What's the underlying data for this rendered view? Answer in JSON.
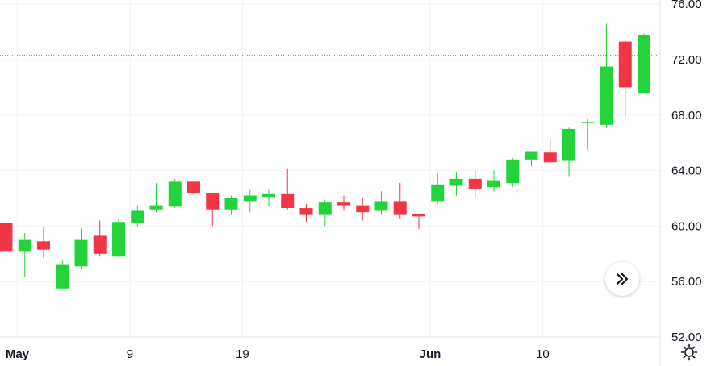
{
  "chart_data": {
    "type": "candlestick",
    "y_ticks": [
      "52.00",
      "56.00",
      "60.00",
      "64.00",
      "68.00",
      "72.00",
      "76.00"
    ],
    "ylim": [
      52,
      76.3
    ],
    "x_ticks": [
      {
        "label": "May",
        "index": 0.6,
        "bold": true
      },
      {
        "label": "9",
        "index": 6.6,
        "bold": false
      },
      {
        "label": "19",
        "index": 12.6,
        "bold": false
      },
      {
        "label": "Jun",
        "index": 22.6,
        "bold": true
      },
      {
        "label": "10",
        "index": 28.6,
        "bold": false
      }
    ],
    "price_line": 72.3,
    "grid": true,
    "colors": {
      "up": "#22d43a",
      "down": "#f23645",
      "price_line": "#f23645",
      "grid": "#f0f3fa",
      "text": "#131722"
    },
    "candles": [
      {
        "o": 60.2,
        "h": 60.4,
        "l": 57.9,
        "c": 58.2
      },
      {
        "o": 58.2,
        "h": 59.5,
        "l": 56.3,
        "c": 59.0
      },
      {
        "o": 58.9,
        "h": 59.9,
        "l": 57.7,
        "c": 58.3
      },
      {
        "o": 55.5,
        "h": 57.6,
        "l": 55.5,
        "c": 57.2
      },
      {
        "o": 57.1,
        "h": 59.8,
        "l": 56.9,
        "c": 59.0
      },
      {
        "o": 59.3,
        "h": 60.4,
        "l": 57.8,
        "c": 58.0
      },
      {
        "o": 57.8,
        "h": 60.5,
        "l": 57.7,
        "c": 60.3
      },
      {
        "o": 60.2,
        "h": 61.5,
        "l": 59.9,
        "c": 61.1
      },
      {
        "o": 61.2,
        "h": 63.1,
        "l": 61.0,
        "c": 61.5
      },
      {
        "o": 61.4,
        "h": 63.4,
        "l": 61.3,
        "c": 63.2
      },
      {
        "o": 63.2,
        "h": 63.2,
        "l": 62.3,
        "c": 62.4
      },
      {
        "o": 62.4,
        "h": 62.4,
        "l": 60.0,
        "c": 61.2
      },
      {
        "o": 61.2,
        "h": 62.2,
        "l": 60.8,
        "c": 62.0
      },
      {
        "o": 61.8,
        "h": 62.6,
        "l": 61.0,
        "c": 62.2
      },
      {
        "o": 62.1,
        "h": 62.6,
        "l": 61.4,
        "c": 62.3
      },
      {
        "o": 62.3,
        "h": 64.1,
        "l": 61.2,
        "c": 61.3
      },
      {
        "o": 61.3,
        "h": 61.6,
        "l": 60.3,
        "c": 60.8
      },
      {
        "o": 60.8,
        "h": 61.9,
        "l": 60.0,
        "c": 61.7
      },
      {
        "o": 61.7,
        "h": 62.2,
        "l": 61.1,
        "c": 61.5
      },
      {
        "o": 61.5,
        "h": 62.0,
        "l": 60.4,
        "c": 61.0
      },
      {
        "o": 61.1,
        "h": 62.5,
        "l": 60.8,
        "c": 61.8
      },
      {
        "o": 61.8,
        "h": 63.1,
        "l": 60.5,
        "c": 60.8
      },
      {
        "o": 60.9,
        "h": 60.9,
        "l": 59.8,
        "c": 60.7
      },
      {
        "o": 61.8,
        "h": 63.8,
        "l": 61.6,
        "c": 63.0
      },
      {
        "o": 62.9,
        "h": 63.9,
        "l": 62.2,
        "c": 63.4
      },
      {
        "o": 63.4,
        "h": 64.0,
        "l": 62.1,
        "c": 62.7
      },
      {
        "o": 62.8,
        "h": 64.0,
        "l": 62.5,
        "c": 63.3
      },
      {
        "o": 63.1,
        "h": 64.9,
        "l": 62.8,
        "c": 64.8
      },
      {
        "o": 64.8,
        "h": 65.4,
        "l": 64.3,
        "c": 65.4
      },
      {
        "o": 65.3,
        "h": 66.2,
        "l": 64.6,
        "c": 64.6
      },
      {
        "o": 64.7,
        "h": 67.1,
        "l": 63.6,
        "c": 67.0
      },
      {
        "o": 67.4,
        "h": 67.7,
        "l": 65.5,
        "c": 67.5
      },
      {
        "o": 67.3,
        "h": 74.6,
        "l": 67.1,
        "c": 71.5
      },
      {
        "o": 73.3,
        "h": 73.5,
        "l": 67.9,
        "c": 70.0
      },
      {
        "o": 69.6,
        "h": 73.9,
        "l": 69.6,
        "c": 73.8
      }
    ]
  },
  "controls": {
    "scroll_icon": "double-chevron-right-icon",
    "settings_icon": "gear-icon"
  }
}
